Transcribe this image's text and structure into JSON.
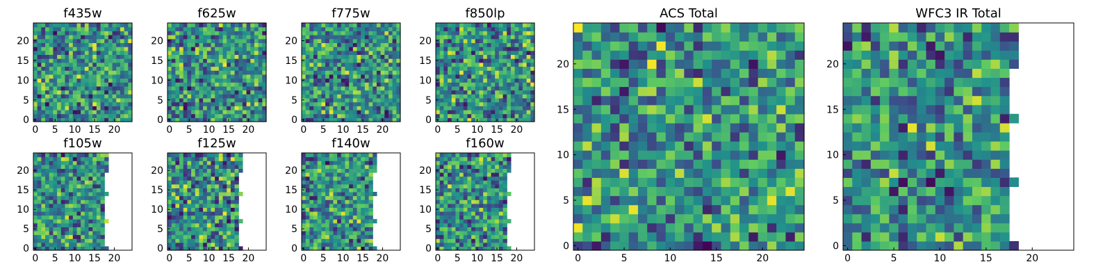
{
  "chart_data": [
    {
      "type": "heatmap",
      "title": "f435w",
      "grid_size": 25,
      "mask_col": null,
      "xticks": [
        "0",
        "5",
        "10",
        "15",
        "20"
      ],
      "yticks": [
        "0",
        "5",
        "10",
        "15",
        "20"
      ],
      "seed": 11
    },
    {
      "type": "heatmap",
      "title": "f625w",
      "grid_size": 25,
      "mask_col": null,
      "xticks": [
        "0",
        "5",
        "10",
        "15",
        "20"
      ],
      "yticks": [
        "0",
        "5",
        "10",
        "15",
        "20"
      ],
      "seed": 23
    },
    {
      "type": "heatmap",
      "title": "f775w",
      "grid_size": 25,
      "mask_col": null,
      "xticks": [
        "0",
        "5",
        "10",
        "15",
        "20"
      ],
      "yticks": [
        "0",
        "5",
        "10",
        "15",
        "20"
      ],
      "seed": 37
    },
    {
      "type": "heatmap",
      "title": "f850lp",
      "grid_size": 25,
      "mask_col": null,
      "xticks": [
        "0",
        "5",
        "10",
        "15",
        "20"
      ],
      "yticks": [
        "0",
        "5",
        "10",
        "15",
        "20"
      ],
      "seed": 41
    },
    {
      "type": "heatmap",
      "title": "f105w",
      "grid_size": 25,
      "mask_col": 19,
      "xticks": [
        "0",
        "5",
        "10",
        "15",
        "20"
      ],
      "yticks": [
        "0",
        "5",
        "10",
        "15",
        "20"
      ],
      "seed": 53
    },
    {
      "type": "heatmap",
      "title": "f125w",
      "grid_size": 25,
      "mask_col": 19,
      "xticks": [
        "0",
        "5",
        "10",
        "15",
        "20"
      ],
      "yticks": [
        "0",
        "5",
        "10",
        "15",
        "20"
      ],
      "seed": 67
    },
    {
      "type": "heatmap",
      "title": "f140w",
      "grid_size": 25,
      "mask_col": 19,
      "xticks": [
        "0",
        "5",
        "10",
        "15",
        "20"
      ],
      "yticks": [
        "0",
        "5",
        "10",
        "15",
        "20"
      ],
      "seed": 71
    },
    {
      "type": "heatmap",
      "title": "f160w",
      "grid_size": 25,
      "mask_col": 19,
      "xticks": [
        "0",
        "5",
        "10",
        "15",
        "20"
      ],
      "yticks": [
        "0",
        "5",
        "10",
        "15",
        "20"
      ],
      "seed": 89
    },
    {
      "type": "heatmap",
      "title": "ACS Total",
      "grid_size": 25,
      "mask_col": null,
      "xticks": [
        "0",
        "5",
        "10",
        "15",
        "20"
      ],
      "yticks": [
        "0",
        "5",
        "10",
        "15",
        "20"
      ],
      "seed": 97
    },
    {
      "type": "heatmap",
      "title": "WFC3 IR Total",
      "grid_size": 25,
      "mask_col": 19,
      "xticks": [
        "0",
        "5",
        "10",
        "15",
        "20"
      ],
      "yticks": [
        "0",
        "5",
        "10",
        "15",
        "20"
      ],
      "seed": 101
    }
  ],
  "colormap": [
    "#440154",
    "#3b528b",
    "#21918c",
    "#5ec962",
    "#fde725"
  ]
}
